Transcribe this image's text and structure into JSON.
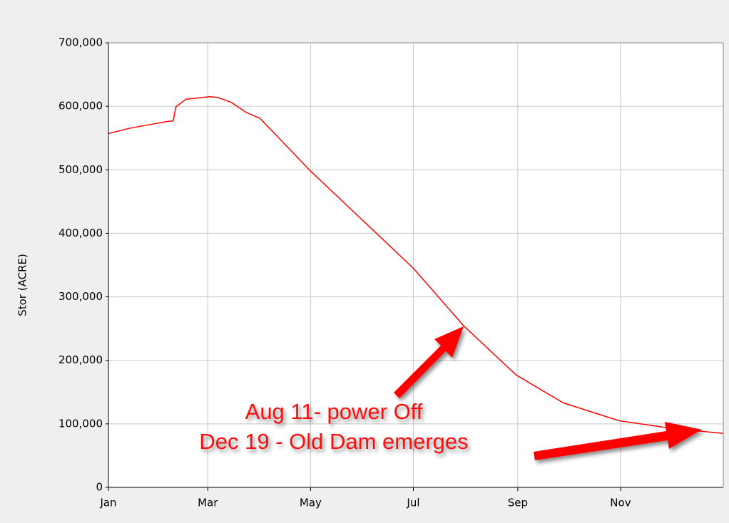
{
  "chart_data": {
    "type": "line",
    "y_label": "Stor (ACRE)",
    "x": [
      0,
      12,
      20,
      35,
      38.5,
      40,
      46,
      60,
      65,
      73,
      82,
      90,
      120,
      181,
      211,
      242,
      270,
      303,
      334,
      365
    ],
    "values": [
      557000,
      565000,
      569000,
      576000,
      577000,
      599000,
      611000,
      615000,
      614000,
      606000,
      590000,
      581000,
      498000,
      345000,
      254000,
      177000,
      133000,
      105000,
      93000,
      85000
    ],
    "color": "#ff0000",
    "xlim": [
      0,
      365
    ],
    "xticks": [
      {
        "value": 0,
        "label": "Jan"
      },
      {
        "value": 59,
        "label": "Mar"
      },
      {
        "value": 120,
        "label": "May"
      },
      {
        "value": 181,
        "label": "Jul"
      },
      {
        "value": 243,
        "label": "Sep"
      },
      {
        "value": 304,
        "label": "Nov"
      }
    ],
    "ylim": [
      0,
      700000
    ],
    "yticks": [
      0,
      {
        "value": 100000,
        "label": "100,000"
      },
      {
        "value": 200000,
        "label": "200,000"
      },
      {
        "value": 300000,
        "label": "300,000"
      },
      {
        "value": 400000,
        "label": "400,000"
      },
      {
        "value": 500000,
        "label": "500,000"
      },
      {
        "value": 600000,
        "label": "600,000"
      },
      {
        "value": 700000,
        "label": "700,000"
      }
    ],
    "grid": true,
    "annotations": [
      "Aug 11- power Off",
      "Dec 19 - Old Dam emerges"
    ]
  }
}
